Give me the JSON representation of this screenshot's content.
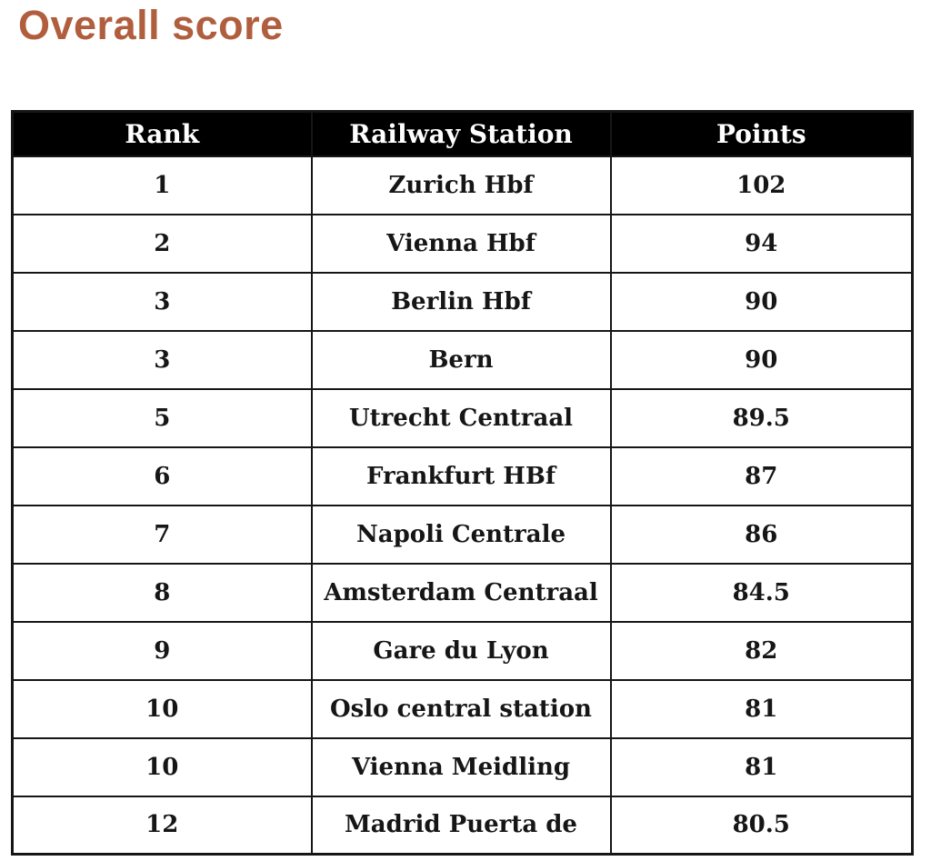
{
  "page": {
    "title": "Overall score",
    "title_color": "#b05e3d"
  },
  "table": {
    "header_bg": "#000000",
    "header_text_color": "#ffffff",
    "border_color": "#161616",
    "columns": [
      "Rank",
      "Railway Station",
      "Points"
    ],
    "rows": [
      {
        "rank": "1",
        "station": "Zurich Hbf",
        "points": "102"
      },
      {
        "rank": "2",
        "station": "Vienna Hbf",
        "points": "94"
      },
      {
        "rank": "3",
        "station": "Berlin Hbf",
        "points": "90"
      },
      {
        "rank": "3",
        "station": "Bern",
        "points": "90"
      },
      {
        "rank": "5",
        "station": "Utrecht Centraal",
        "points": "89.5"
      },
      {
        "rank": "6",
        "station": "Frankfurt HBf",
        "points": "87"
      },
      {
        "rank": "7",
        "station": "Napoli Centrale",
        "points": "86"
      },
      {
        "rank": "8",
        "station": "Amsterdam Centraal",
        "points": "84.5"
      },
      {
        "rank": "9",
        "station": "Gare du Lyon",
        "points": "82"
      },
      {
        "rank": "10",
        "station": "Oslo central station",
        "points": "81"
      },
      {
        "rank": "10",
        "station": "Vienna Meidling",
        "points": "81"
      },
      {
        "rank": "12",
        "station": "Madrid Puerta de",
        "points": "80.5"
      }
    ]
  },
  "chart_data": {
    "type": "table",
    "title": "Overall score",
    "categories": [
      "Zurich Hbf",
      "Vienna Hbf",
      "Berlin Hbf",
      "Bern",
      "Utrecht Centraal",
      "Frankfurt HBf",
      "Napoli Centrale",
      "Amsterdam Centraal",
      "Gare du Lyon",
      "Oslo central station",
      "Vienna Meidling",
      "Madrid Puerta de"
    ],
    "ranks": [
      1,
      2,
      3,
      3,
      5,
      6,
      7,
      8,
      9,
      10,
      10,
      12
    ],
    "values": [
      102,
      94,
      90,
      90,
      89.5,
      87,
      86,
      84.5,
      82,
      81,
      81,
      80.5
    ]
  }
}
